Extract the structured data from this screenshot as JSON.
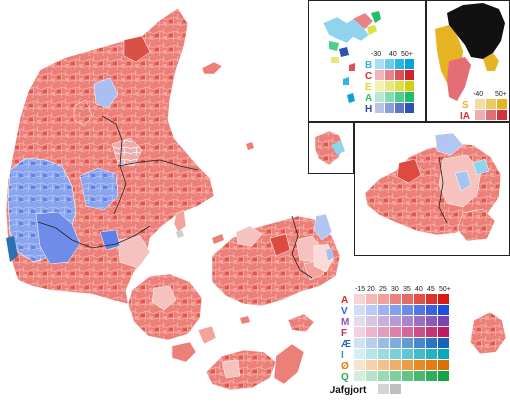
{
  "denmark_legend": {
    "ticks": [
      "-15",
      "20",
      "25",
      "30",
      "35",
      "40",
      "45",
      "50+"
    ],
    "parties": [
      {
        "letter": "A",
        "color": "#e8251a",
        "shades": [
          "#f7d4d1",
          "#f3b8b3",
          "#efa099",
          "#ea857d",
          "#e66b62",
          "#e14f45",
          "#dc342a",
          "#d81b12"
        ]
      },
      {
        "letter": "V",
        "color": "#2b5fe8",
        "shades": [
          "#d3dcf7",
          "#b9c8f4",
          "#9db3f1",
          "#849fee",
          "#6b8beb",
          "#4f75e7",
          "#3862e4",
          "#1d4ee0"
        ]
      },
      {
        "letter": "M",
        "color": "#8a55b8",
        "shades": [
          "#e5dbef",
          "#d6c6e6",
          "#c7b0dd",
          "#b79ad3",
          "#a885ca",
          "#996fc1",
          "#8a5ab8",
          "#7b45ae"
        ]
      },
      {
        "letter": "F",
        "color": "#c52a6d",
        "shades": [
          "#f2d1df",
          "#ebb6cd",
          "#e39cbb",
          "#dc82aa",
          "#d56898",
          "#ce4e86",
          "#c73474",
          "#bf1a63"
        ]
      },
      {
        "letter": "Æ",
        "color": "#2c6fb3",
        "shades": [
          "#d2e2f1",
          "#b6d0ea",
          "#9abee3",
          "#7eacdb",
          "#629ad4",
          "#4688cd",
          "#2b76c6",
          "#1464b8"
        ]
      },
      {
        "letter": "I",
        "color": "#1aa6b6",
        "shades": [
          "#d2eff2",
          "#b5e5ea",
          "#98dbe2",
          "#7bd1da",
          "#5ec7d2",
          "#41bdca",
          "#25b3c2",
          "#0aa9ba"
        ]
      },
      {
        "letter": "Ø",
        "color": "#e87f12",
        "shades": [
          "#f9e3cc",
          "#f6d1ab",
          "#f3bf8a",
          "#f0ad69",
          "#ed9b48",
          "#ea8927",
          "#e57b12",
          "#d96f0a"
        ]
      },
      {
        "letter": "Q",
        "color": "#2aa858",
        "shades": [
          "#d3eedc",
          "#b7e4c7",
          "#9bd9b1",
          "#7fcf9c",
          "#63c486",
          "#47ba71",
          "#2baf5b",
          "#14a548"
        ]
      }
    ],
    "undecided_label": "Uafgjort",
    "undecided_colors": [
      "#d4d4d4",
      "#bfbfbf"
    ]
  },
  "faroe_legend": {
    "ticks": [
      "-30",
      "40",
      "50+"
    ],
    "parties": [
      {
        "letter": "B",
        "color": "#2ab7e2",
        "shades": [
          "#a9dff2",
          "#6ccbeb",
          "#2ab7e2",
          "#0aa2d4"
        ]
      },
      {
        "letter": "C",
        "color": "#d8303a",
        "shades": [
          "#f2b4b7",
          "#e88389",
          "#dd525a",
          "#d1232d"
        ]
      },
      {
        "letter": "E",
        "color": "#d8d81c",
        "shades": [
          "#f2f2b0",
          "#e8e87a",
          "#dede45",
          "#d0d012"
        ]
      },
      {
        "letter": "A",
        "color": "#36c070",
        "shades": [
          "#b6ead0",
          "#83dcae",
          "#4fcd8b",
          "#22bd69"
        ]
      },
      {
        "letter": "H",
        "color": "#2a4aa8",
        "shades": [
          "#b8c4e6",
          "#8a9fd6",
          "#5c78c5",
          "#2e52b4"
        ]
      }
    ]
  },
  "greenland_legend": {
    "ticks": [
      "-40",
      "50+"
    ],
    "parties": [
      {
        "letter": "S",
        "color": "#e6b422",
        "shades": [
          "#f2dca0",
          "#ecca62",
          "#e6b422"
        ]
      },
      {
        "letter": "IA",
        "color": "#d8303a",
        "shades": [
          "#f0aeb2",
          "#e36e76",
          "#d6303a"
        ]
      }
    ]
  }
}
